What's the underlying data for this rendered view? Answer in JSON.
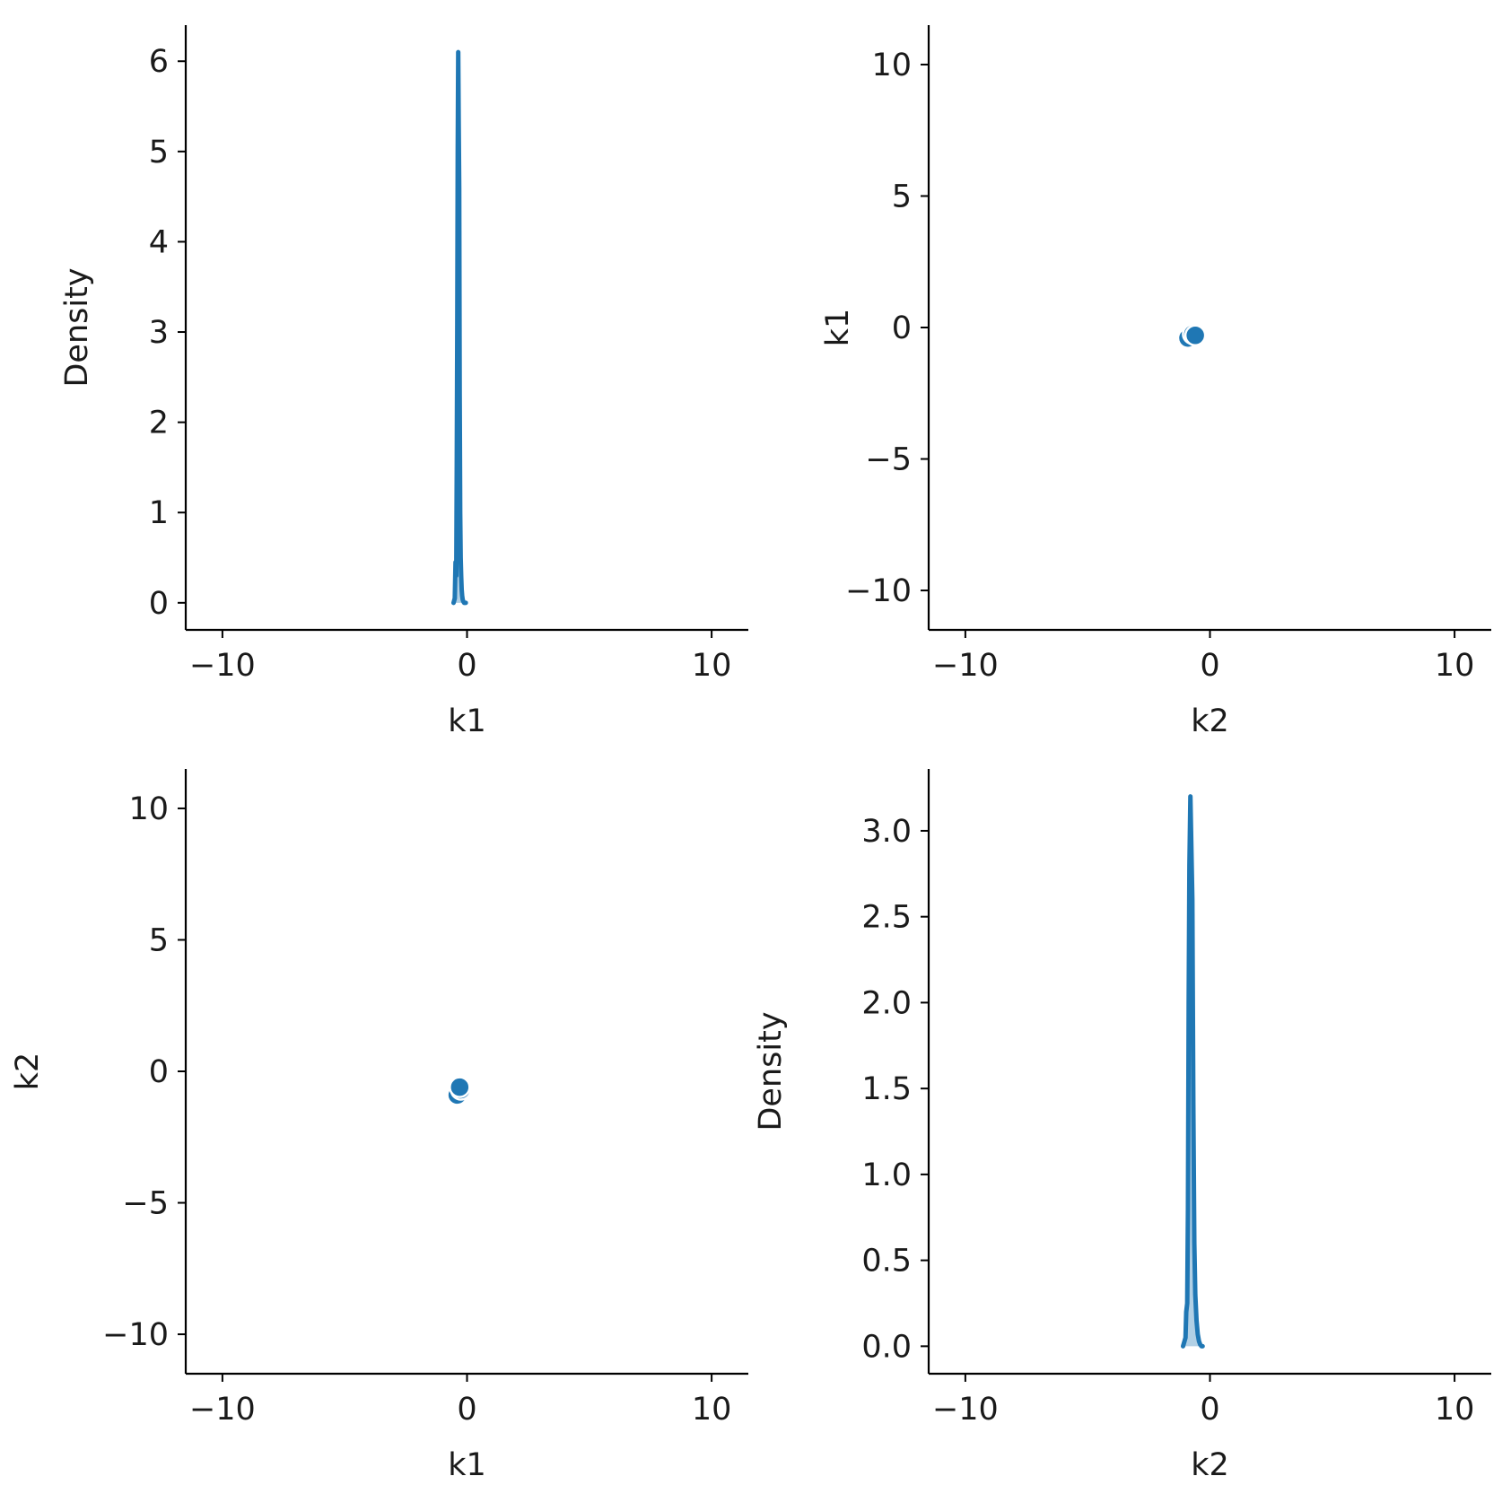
{
  "chart_data": [
    {
      "type": "line",
      "panel": "top-left",
      "subtype": "kde",
      "xlabel": "k1",
      "ylabel": "Density",
      "xlim": [
        -11.5,
        11.5
      ],
      "ylim": [
        -0.3,
        6.4
      ],
      "xticks": [
        -10,
        0,
        10
      ],
      "xtick_labels": [
        "−10",
        "0",
        "10"
      ],
      "yticks": [
        0,
        1,
        2,
        3,
        4,
        5,
        6
      ],
      "ytick_labels": [
        "0",
        "1",
        "2",
        "3",
        "4",
        "5",
        "6"
      ],
      "x": [
        -0.55,
        -0.5,
        -0.47,
        -0.44,
        -0.42,
        -0.4,
        -0.38,
        -0.36,
        -0.34,
        -0.32,
        -0.3,
        -0.28,
        -0.26,
        -0.24,
        -0.22,
        -0.2,
        -0.18,
        -0.16,
        -0.14,
        -0.12,
        -0.1,
        -0.05
      ],
      "y": [
        0.0,
        0.05,
        0.45,
        0.3,
        1.5,
        3.0,
        5.0,
        6.1,
        5.3,
        4.6,
        2.3,
        1.0,
        0.5,
        0.3,
        0.15,
        0.08,
        0.04,
        0.02,
        0.01,
        0.0,
        0.0,
        0.0
      ],
      "color": "#1f77b4",
      "grid": false
    },
    {
      "type": "scatter",
      "panel": "top-right",
      "xlabel": "k2",
      "ylabel": "k1",
      "xlim": [
        -11.5,
        11.5
      ],
      "ylim": [
        -11.5,
        11.5
      ],
      "xticks": [
        -10,
        0,
        10
      ],
      "xtick_labels": [
        "−10",
        "0",
        "10"
      ],
      "yticks": [
        -10,
        -5,
        0,
        5,
        10
      ],
      "ytick_labels": [
        "−10",
        "−5",
        "0",
        "5",
        "10"
      ],
      "points": [
        {
          "x": -0.9,
          "y": -0.4
        },
        {
          "x": -0.7,
          "y": -0.25
        },
        {
          "x": -0.6,
          "y": -0.3
        }
      ],
      "color": "#1f77b4",
      "grid": false
    },
    {
      "type": "scatter",
      "panel": "bottom-left",
      "xlabel": "k1",
      "ylabel": "k2",
      "xlim": [
        -11.5,
        11.5
      ],
      "ylim": [
        -11.5,
        11.5
      ],
      "xticks": [
        -10,
        0,
        10
      ],
      "xtick_labels": [
        "−10",
        "0",
        "10"
      ],
      "yticks": [
        -10,
        -5,
        0,
        5,
        10
      ],
      "ytick_labels": [
        "−10",
        "−5",
        "0",
        "5",
        "10"
      ],
      "points": [
        {
          "x": -0.4,
          "y": -0.9
        },
        {
          "x": -0.25,
          "y": -0.7
        },
        {
          "x": -0.3,
          "y": -0.6
        }
      ],
      "color": "#1f77b4",
      "grid": false
    },
    {
      "type": "line",
      "panel": "bottom-right",
      "subtype": "kde",
      "xlabel": "k2",
      "ylabel": "Density",
      "xlim": [
        -11.5,
        11.5
      ],
      "ylim": [
        -0.16,
        3.36
      ],
      "xticks": [
        -10,
        0,
        10
      ],
      "xtick_labels": [
        "−10",
        "0",
        "10"
      ],
      "yticks": [
        0.0,
        0.5,
        1.0,
        1.5,
        2.0,
        2.5,
        3.0
      ],
      "ytick_labels": [
        "0.0",
        "0.5",
        "1.0",
        "1.5",
        "2.0",
        "2.5",
        "3.0"
      ],
      "x": [
        -1.1,
        -1.0,
        -0.97,
        -0.93,
        -0.9,
        -0.87,
        -0.84,
        -0.8,
        -0.76,
        -0.72,
        -0.68,
        -0.64,
        -0.6,
        -0.55,
        -0.5,
        -0.45,
        -0.4,
        -0.35,
        -0.3
      ],
      "y": [
        0.0,
        0.05,
        0.2,
        0.25,
        0.8,
        2.0,
        2.8,
        3.2,
        2.9,
        2.6,
        1.4,
        0.6,
        0.3,
        0.15,
        0.07,
        0.03,
        0.01,
        0.0,
        0.0
      ],
      "color": "#1f77b4",
      "grid": false
    }
  ]
}
